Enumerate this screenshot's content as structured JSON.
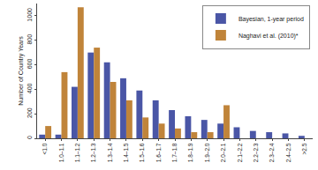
{
  "chart_data": {
    "type": "bar",
    "y_label": "Number of Country Years",
    "categories": [
      "<1.0",
      "1.0–1.1",
      "1.1–1.2",
      "1.2–1.3",
      "1.3–1.4",
      "1.4–1.5",
      "1.5–1.6",
      "1.6–1.7",
      "1.7–1.8",
      "1.8–1.9",
      "1.9–2.0",
      "2.0–2.1",
      "2.1–2.2",
      "2.2–2.3",
      "2.3–2.4",
      "2.4–2.5",
      ">2.5"
    ],
    "series": [
      {
        "name": "Bayesian, 1-year period",
        "color": "#4a56a6",
        "values": [
          30,
          30,
          420,
          700,
          620,
          490,
          390,
          310,
          230,
          180,
          150,
          120,
          90,
          60,
          50,
          40,
          20
        ]
      },
      {
        "name": "Naghavi et al. (2010)*",
        "color": "#c0843a",
        "values": [
          100,
          540,
          1070,
          740,
          460,
          310,
          170,
          120,
          80,
          50,
          50,
          270,
          0,
          0,
          0,
          0,
          0
        ]
      }
    ],
    "ylim": [
      0,
      1100
    ],
    "yticks": [
      0,
      200,
      400,
      600,
      800,
      1000
    ],
    "grid": false,
    "legend": "top right"
  }
}
